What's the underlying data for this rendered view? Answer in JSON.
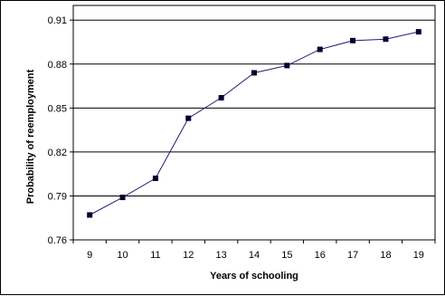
{
  "chart_data": {
    "type": "line",
    "title": "",
    "xlabel": "Years of schooling",
    "ylabel": "Probability of reemployment",
    "categories": [
      "9",
      "10",
      "11",
      "12",
      "13",
      "14",
      "15",
      "16",
      "17",
      "18",
      "19"
    ],
    "series": [
      {
        "values": [
          0.777,
          0.789,
          0.802,
          0.843,
          0.857,
          0.874,
          0.879,
          0.89,
          0.896,
          0.897,
          0.902
        ]
      }
    ],
    "ylim": [
      0.76,
      0.92
    ],
    "yticks": [
      "0.76",
      "0.79",
      "0.82",
      "0.85",
      "0.88",
      "0.91"
    ],
    "ytick_values": [
      0.76,
      0.79,
      0.82,
      0.85,
      0.88,
      0.91
    ],
    "grid": "horizontal",
    "legend": "none",
    "colors": {
      "line": "#1f1f7a",
      "marker": "#000033",
      "grid": "#000000"
    }
  }
}
